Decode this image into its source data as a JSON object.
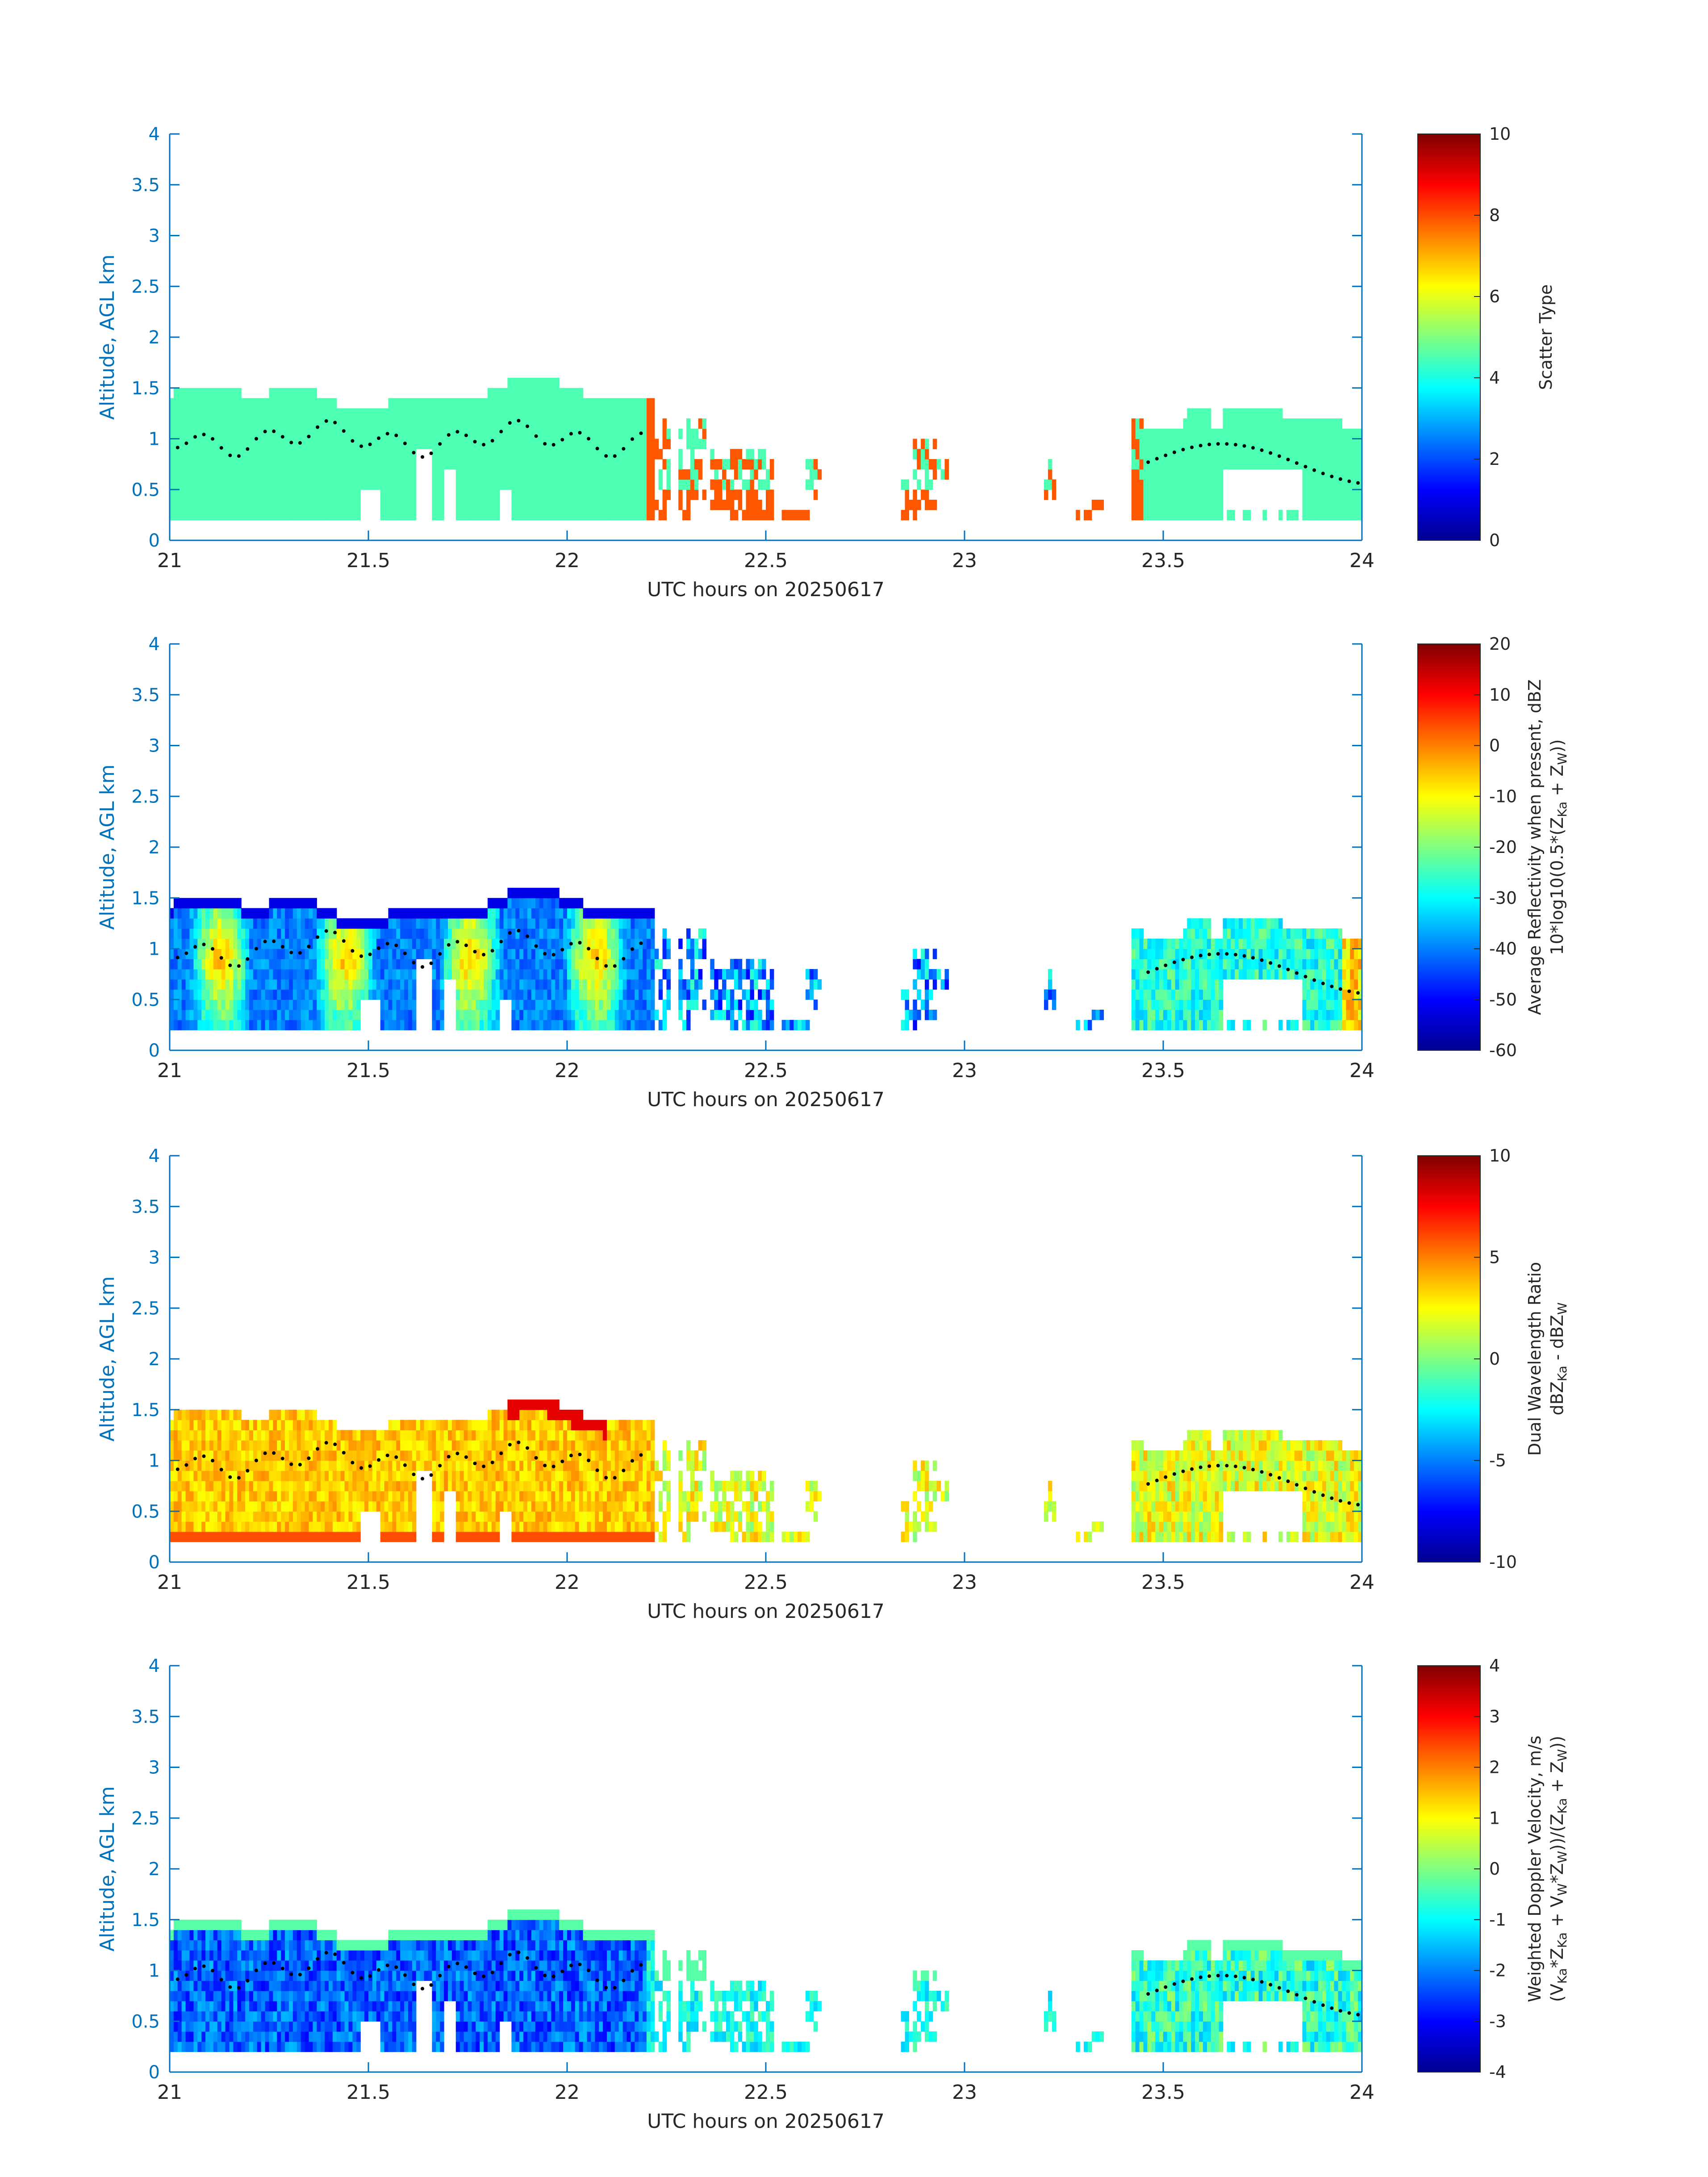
{
  "chart_data": [
    {
      "type": "heatmap",
      "xlabel": "UTC hours on 20250617",
      "ylabel": "Altitude, AGL km",
      "xlim": [
        21,
        24
      ],
      "ylim": [
        0,
        4
      ],
      "xticks": [
        "21",
        "21.5",
        "22",
        "22.5",
        "23",
        "23.5",
        "24"
      ],
      "yticks": [
        "0",
        "0.5",
        "1",
        "1.5",
        "2",
        "2.5",
        "3",
        "3.5",
        "4"
      ],
      "colormap": "jet",
      "colorbar": {
        "label_lines": [
          "Scatter Type"
        ],
        "range": [
          0,
          10
        ],
        "ticks": [
          "0",
          "2",
          "4",
          "6",
          "8",
          "10"
        ]
      },
      "field": "scatter-type",
      "cloud_top_km": [
        [
          21.0,
          1.45
        ],
        [
          21.15,
          1.5
        ],
        [
          21.3,
          1.48
        ],
        [
          21.45,
          1.55
        ],
        [
          21.6,
          1.5
        ],
        [
          21.75,
          1.45
        ],
        [
          21.85,
          1.5
        ],
        [
          21.95,
          1.6
        ],
        [
          22.05,
          1.55
        ],
        [
          22.15,
          1.45
        ],
        [
          22.2,
          1.35
        ]
      ]
    },
    {
      "type": "heatmap",
      "xlabel": "UTC hours on 20250617",
      "ylabel": "Altitude, AGL km",
      "xlim": [
        21,
        24
      ],
      "ylim": [
        0,
        4
      ],
      "xticks": [
        "21",
        "21.5",
        "22",
        "22.5",
        "23",
        "23.5",
        "24"
      ],
      "yticks": [
        "0",
        "0.5",
        "1",
        "1.5",
        "2",
        "2.5",
        "3",
        "3.5",
        "4"
      ],
      "colormap": "jet",
      "colorbar": {
        "label_lines": [
          "Average Reflectivity when present, dBZ",
          "10*log10(0.5*(Z",
          "Ka",
          " + Z",
          "W",
          "))"
        ],
        "range": [
          -60,
          20
        ],
        "ticks": [
          "-60",
          "-50",
          "-40",
          "-30",
          "-20",
          "-10",
          "0",
          "10",
          "20"
        ]
      },
      "field": "reflectivity"
    },
    {
      "type": "heatmap",
      "xlabel": "UTC hours on 20250617",
      "ylabel": "Altitude, AGL km",
      "xlim": [
        21,
        24
      ],
      "ylim": [
        0,
        4
      ],
      "xticks": [
        "21",
        "21.5",
        "22",
        "22.5",
        "23",
        "23.5",
        "24"
      ],
      "yticks": [
        "0",
        "0.5",
        "1",
        "1.5",
        "2",
        "2.5",
        "3",
        "3.5",
        "4"
      ],
      "colormap": "jet",
      "colorbar": {
        "label_lines": [
          "Dual Wavelength Ratio",
          "dBZ",
          "Ka",
          " - dBZ",
          "W"
        ],
        "range": [
          -10,
          10
        ],
        "ticks": [
          "-10",
          "-5",
          "0",
          "5",
          "10"
        ]
      },
      "field": "dwr"
    },
    {
      "type": "heatmap",
      "xlabel": "UTC hours on 20250617",
      "ylabel": "Altitude, AGL km",
      "xlim": [
        21,
        24
      ],
      "ylim": [
        0,
        4
      ],
      "xticks": [
        "21",
        "21.5",
        "22",
        "22.5",
        "23",
        "23.5",
        "24"
      ],
      "yticks": [
        "0",
        "0.5",
        "1",
        "1.5",
        "2",
        "2.5",
        "3",
        "3.5",
        "4"
      ],
      "colormap": "jet",
      "colorbar": {
        "label_lines": [
          "Weighted Doppler Velocity, m/s",
          "(V",
          "Ka",
          "*Z",
          "Ka",
          " + V",
          "W",
          "*Z",
          "W",
          "))/(Z",
          "Ka",
          " + Z",
          "W",
          "))"
        ],
        "range": [
          -4,
          4
        ],
        "ticks": [
          "-4",
          "-3",
          "-2",
          "-1",
          "0",
          "1",
          "2",
          "3",
          "4"
        ]
      },
      "field": "velocity"
    }
  ],
  "colors": {
    "axis": "#0072bd",
    "text": "#262626",
    "scatter_cloud": "#1ff5d6",
    "scatter_precip": "#ff4a10",
    "dots": "#000000"
  }
}
